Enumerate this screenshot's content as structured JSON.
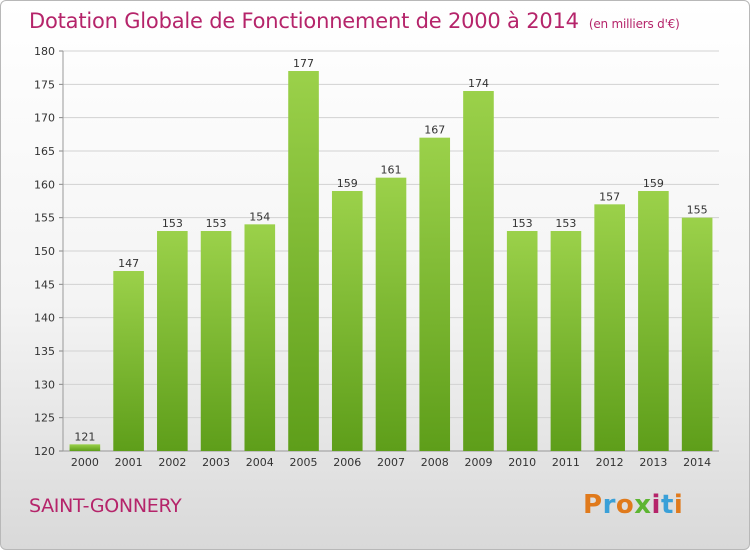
{
  "title": "Dotation Globale de Fonctionnement de 2000 à 2014",
  "subtitle": "(en milliers d'€)",
  "commune": "SAINT-GONNERY",
  "logo": {
    "letters": [
      "P",
      "r",
      "o",
      "x",
      "i",
      "t",
      "i"
    ],
    "colors": [
      "#e07a1c",
      "#3aa0d8",
      "#e07a1c",
      "#5db531",
      "#b5246a",
      "#3aa0d8",
      "#e07a1c"
    ]
  },
  "chart_data": {
    "type": "bar",
    "categories": [
      "2000",
      "2001",
      "2002",
      "2003",
      "2004",
      "2005",
      "2006",
      "2007",
      "2008",
      "2009",
      "2010",
      "2011",
      "2012",
      "2013",
      "2014"
    ],
    "values": [
      121,
      147,
      153,
      153,
      154,
      177,
      159,
      161,
      167,
      174,
      153,
      153,
      157,
      159,
      155
    ],
    "ylim": [
      120,
      180
    ],
    "yticks": [
      120,
      125,
      130,
      135,
      140,
      145,
      150,
      155,
      160,
      165,
      170,
      175,
      180
    ],
    "grid": true,
    "colors": {
      "bar_top": "#9bd14a",
      "bar_bottom": "#5e9e1a",
      "grid": "#d2d2d2",
      "title": "#b5246a"
    }
  }
}
